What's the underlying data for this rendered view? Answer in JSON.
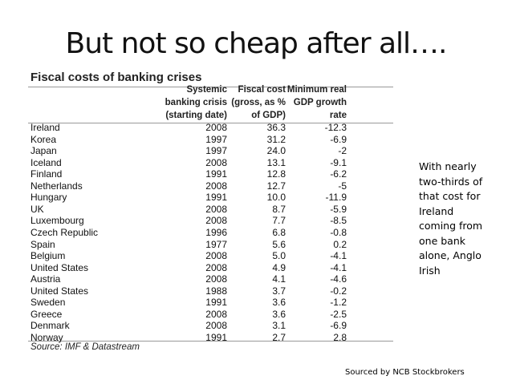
{
  "title": "But not so cheap after all….",
  "table": {
    "title": "Fiscal costs of banking crises",
    "headers": [
      [],
      [
        "Systemic",
        "banking crisis",
        "(starting date)"
      ],
      [
        "Fiscal cost",
        "(gross, as %",
        "of GDP)"
      ],
      [
        "Minimum real",
        "GDP growth",
        "rate"
      ]
    ],
    "rows": [
      [
        "Ireland",
        "2008",
        "36.3",
        "-12.3"
      ],
      [
        "Korea",
        "1997",
        "31.2",
        "-6.9"
      ],
      [
        "Japan",
        "1997",
        "24.0",
        "-2"
      ],
      [
        "Iceland",
        "2008",
        "13.1",
        "-9.1"
      ],
      [
        "Finland",
        "1991",
        "12.8",
        "-6.2"
      ],
      [
        "Netherlands",
        "2008",
        "12.7",
        "-5"
      ],
      [
        "Hungary",
        "1991",
        "10.0",
        "-11.9"
      ],
      [
        "UK",
        "2008",
        "8.7",
        "-5.9"
      ],
      [
        "Luxembourg",
        "2008",
        "7.7",
        "-8.5"
      ],
      [
        "Czech Republic",
        "1996",
        "6.8",
        "-0.8"
      ],
      [
        "Spain",
        "1977",
        "5.6",
        "0.2"
      ],
      [
        "Belgium",
        "2008",
        "5.0",
        "-4.1"
      ],
      [
        "United States",
        "2008",
        "4.9",
        "-4.1"
      ],
      [
        "Austria",
        "2008",
        "4.1",
        "-4.6"
      ],
      [
        "United States",
        "1988",
        "3.7",
        "-0.2"
      ],
      [
        "Sweden",
        "1991",
        "3.6",
        "-1.2"
      ],
      [
        "Greece",
        "2008",
        "3.6",
        "-2.5"
      ],
      [
        "Denmark",
        "2008",
        "3.1",
        "-6.9"
      ],
      [
        "Norway",
        "1991",
        "2.7",
        "2.8"
      ]
    ],
    "source": "Source: IMF & Datastream"
  },
  "note": [
    "With nearly",
    "two-thirds of",
    "that cost for",
    "Ireland",
    "coming from",
    "one bank",
    "alone, Anglo",
    "Irish"
  ],
  "footer": "Sourced by NCB Stockbrokers"
}
